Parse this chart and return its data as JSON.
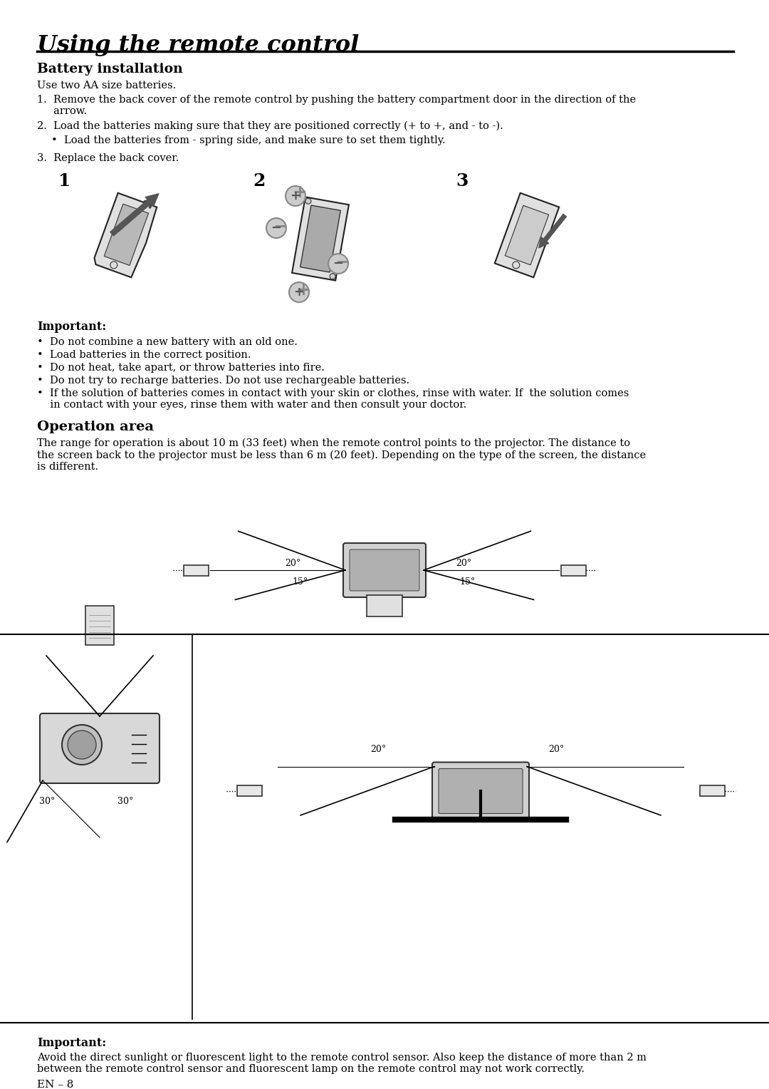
{
  "title": "Using the remote control",
  "section1_title": "Battery installation",
  "section1_intro": "Use two AA size batteries.",
  "step1": "1.  Remove the back cover of the remote control by pushing the battery compartment door in the direction of the\n     arrow.",
  "step2": "2.  Load the batteries making sure that they are positioned correctly (+ to +, and - to -).",
  "step2_bullet": "•  Load the batteries from - spring side, and make sure to set them tightly.",
  "step3": "3.  Replace the back cover.",
  "important1_title": "Important:",
  "important1_bullets": [
    "Do not combine a new battery with an old one.",
    "Load batteries in the correct position.",
    "Do not heat, take apart, or throw batteries into fire.",
    "Do not try to recharge batteries. Do not use rechargeable batteries.",
    "If the solution of batteries comes in contact with your skin or clothes, rinse with water. If  the solution comes\n    in contact with your eyes, rinse them with water and then consult your doctor."
  ],
  "section2_title": "Operation area",
  "section2_text": "The range for operation is about 10 m (33 feet) when the remote control points to the projector. The distance to\nthe screen back to the projector must be less than 6 m (20 feet). Depending on the type of the screen, the distance\nis different.",
  "important2_title": "Important:",
  "important2_text": "Avoid the direct sunlight or fluorescent light to the remote control sensor. Also keep the distance of more than 2 m\nbetween the remote control sensor and fluorescent lamp on the remote control may not work correctly.",
  "page_label": "EN – 8",
  "bg_color": "#ffffff",
  "text_color": "#000000",
  "title_font_size": 22,
  "section_font_size": 13,
  "body_font_size": 10.5
}
